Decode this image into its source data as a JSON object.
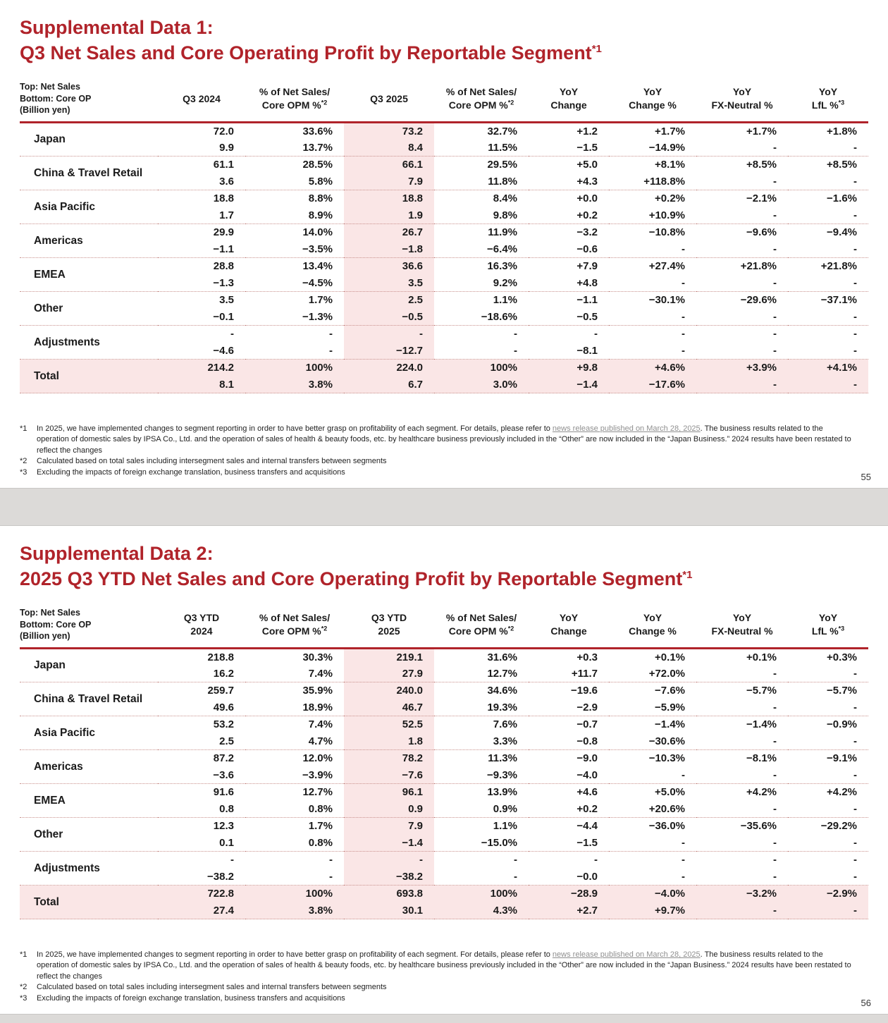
{
  "colors": {
    "accent_red": "#B0232A",
    "highlight_pink": "#FAE6E6"
  },
  "header_note": {
    "l1": "Top: Net Sales",
    "l2": "Bottom: Core OP",
    "l3": "(Billion yen)"
  },
  "footnotes": {
    "fn1": {
      "marker": "*1",
      "pre": "In 2025, we have implemented changes to segment reporting in order to have better grasp on profitability of each segment. For details, please refer to ",
      "link": "news release published on March 28, 2025",
      "post": ". The business results related to the operation of domestic sales by IPSA Co., Ltd. and the operation of sales of health & beauty foods, etc. by healthcare business previously included in the “Other” are now included in the “Japan Business.” 2024 results have been restated to reflect the changes"
    },
    "fn2": {
      "marker": "*2",
      "text": "Calculated based on total sales including intersegment sales and internal transfers between segments"
    },
    "fn3": {
      "marker": "*3",
      "text": "Excluding the impacts of foreign exchange translation, business transfers and acquisitions"
    }
  },
  "slides": [
    {
      "page": "55",
      "title": {
        "line1": "Supplemental Data 1:",
        "line2": "Q3 Net Sales and Core Operating Profit by Reportable Segment",
        "sup": "*1"
      },
      "header_cols": [
        {
          "l1": "Q3 2024"
        },
        {
          "l1": "% of Net Sales/",
          "l2": "Core OPM %",
          "sup": "*2"
        },
        {
          "l1": "Q3 2025"
        },
        {
          "l1": "% of Net Sales/",
          "l2": "Core OPM %",
          "sup": "*2"
        },
        {
          "l1": "YoY",
          "l2": "Change"
        },
        {
          "l1": "YoY",
          "l2": "Change %"
        },
        {
          "l1": "YoY",
          "l2": "FX-Neutral %"
        },
        {
          "l1": "YoY",
          "l2": "LfL %",
          "sup": "*3"
        }
      ],
      "rows": [
        {
          "label": "Japan",
          "top": [
            "72.0",
            "33.6%",
            "73.2",
            "32.7%",
            "+1.2",
            "+1.7%",
            "+1.7%",
            "+1.8%"
          ],
          "bottom": [
            "9.9",
            "13.7%",
            "8.4",
            "11.5%",
            "−1.5",
            "−14.9%",
            "-",
            "-"
          ]
        },
        {
          "label": "China & Travel Retail",
          "top": [
            "61.1",
            "28.5%",
            "66.1",
            "29.5%",
            "+5.0",
            "+8.1%",
            "+8.5%",
            "+8.5%"
          ],
          "bottom": [
            "3.6",
            "5.8%",
            "7.9",
            "11.8%",
            "+4.3",
            "+118.8%",
            "-",
            "-"
          ]
        },
        {
          "label": "Asia Pacific",
          "top": [
            "18.8",
            "8.8%",
            "18.8",
            "8.4%",
            "+0.0",
            "+0.2%",
            "−2.1%",
            "−1.6%"
          ],
          "bottom": [
            "1.7",
            "8.9%",
            "1.9",
            "9.8%",
            "+0.2",
            "+10.9%",
            "-",
            "-"
          ]
        },
        {
          "label": "Americas",
          "top": [
            "29.9",
            "14.0%",
            "26.7",
            "11.9%",
            "−3.2",
            "−10.8%",
            "−9.6%",
            "−9.4%"
          ],
          "bottom": [
            "−1.1",
            "−3.5%",
            "−1.8",
            "−6.4%",
            "−0.6",
            "-",
            "-",
            "-"
          ]
        },
        {
          "label": "EMEA",
          "top": [
            "28.8",
            "13.4%",
            "36.6",
            "16.3%",
            "+7.9",
            "+27.4%",
            "+21.8%",
            "+21.8%"
          ],
          "bottom": [
            "−1.3",
            "−4.5%",
            "3.5",
            "9.2%",
            "+4.8",
            "-",
            "-",
            "-"
          ]
        },
        {
          "label": "Other",
          "top": [
            "3.5",
            "1.7%",
            "2.5",
            "1.1%",
            "−1.1",
            "−30.1%",
            "−29.6%",
            "−37.1%"
          ],
          "bottom": [
            "−0.1",
            "−1.3%",
            "−0.5",
            "−18.6%",
            "−0.5",
            "-",
            "-",
            "-"
          ]
        },
        {
          "label": "Adjustments",
          "top": [
            "-",
            "-",
            "-",
            "-",
            "-",
            "-",
            "-",
            "-"
          ],
          "bottom": [
            "−4.6",
            "-",
            "−12.7",
            "-",
            "−8.1",
            "-",
            "-",
            "-"
          ]
        },
        {
          "label": "Total",
          "is_total": true,
          "top": [
            "214.2",
            "100%",
            "224.0",
            "100%",
            "+9.8",
            "+4.6%",
            "+3.9%",
            "+4.1%"
          ],
          "bottom": [
            "8.1",
            "3.8%",
            "6.7",
            "3.0%",
            "−1.4",
            "−17.6%",
            "-",
            "-"
          ]
        }
      ]
    },
    {
      "page": "56",
      "title": {
        "line1": "Supplemental Data 2:",
        "line2": "2025 Q3 YTD Net Sales and Core Operating Profit by Reportable Segment",
        "sup": "*1"
      },
      "header_cols": [
        {
          "l1": "Q3 YTD",
          "l2": "2024"
        },
        {
          "l1": "% of Net Sales/",
          "l2": "Core OPM %",
          "sup": "*2"
        },
        {
          "l1": "Q3 YTD",
          "l2": "2025"
        },
        {
          "l1": "% of Net Sales/",
          "l2": "Core OPM %",
          "sup": "*2"
        },
        {
          "l1": "YoY",
          "l2": "Change"
        },
        {
          "l1": "YoY",
          "l2": "Change %"
        },
        {
          "l1": "YoY",
          "l2": "FX-Neutral %"
        },
        {
          "l1": "YoY",
          "l2": "LfL %",
          "sup": "*3"
        }
      ],
      "rows": [
        {
          "label": "Japan",
          "top": [
            "218.8",
            "30.3%",
            "219.1",
            "31.6%",
            "+0.3",
            "+0.1%",
            "+0.1%",
            "+0.3%"
          ],
          "bottom": [
            "16.2",
            "7.4%",
            "27.9",
            "12.7%",
            "+11.7",
            "+72.0%",
            "-",
            "-"
          ]
        },
        {
          "label": "China & Travel Retail",
          "top": [
            "259.7",
            "35.9%",
            "240.0",
            "34.6%",
            "−19.6",
            "−7.6%",
            "−5.7%",
            "−5.7%"
          ],
          "bottom": [
            "49.6",
            "18.9%",
            "46.7",
            "19.3%",
            "−2.9",
            "−5.9%",
            "-",
            "-"
          ]
        },
        {
          "label": "Asia Pacific",
          "top": [
            "53.2",
            "7.4%",
            "52.5",
            "7.6%",
            "−0.7",
            "−1.4%",
            "−1.4%",
            "−0.9%"
          ],
          "bottom": [
            "2.5",
            "4.7%",
            "1.8",
            "3.3%",
            "−0.8",
            "−30.6%",
            "-",
            "-"
          ]
        },
        {
          "label": "Americas",
          "top": [
            "87.2",
            "12.0%",
            "78.2",
            "11.3%",
            "−9.0",
            "−10.3%",
            "−8.1%",
            "−9.1%"
          ],
          "bottom": [
            "−3.6",
            "−3.9%",
            "−7.6",
            "−9.3%",
            "−4.0",
            "-",
            "-",
            "-"
          ]
        },
        {
          "label": "EMEA",
          "top": [
            "91.6",
            "12.7%",
            "96.1",
            "13.9%",
            "+4.6",
            "+5.0%",
            "+4.2%",
            "+4.2%"
          ],
          "bottom": [
            "0.8",
            "0.8%",
            "0.9",
            "0.9%",
            "+0.2",
            "+20.6%",
            "-",
            "-"
          ]
        },
        {
          "label": "Other",
          "top": [
            "12.3",
            "1.7%",
            "7.9",
            "1.1%",
            "−4.4",
            "−36.0%",
            "−35.6%",
            "−29.2%"
          ],
          "bottom": [
            "0.1",
            "0.8%",
            "−1.4",
            "−15.0%",
            "−1.5",
            "-",
            "-",
            "-"
          ]
        },
        {
          "label": "Adjustments",
          "top": [
            "-",
            "-",
            "-",
            "-",
            "-",
            "-",
            "-",
            "-"
          ],
          "bottom": [
            "−38.2",
            "-",
            "−38.2",
            "-",
            "−0.0",
            "-",
            "-",
            "-"
          ]
        },
        {
          "label": "Total",
          "is_total": true,
          "top": [
            "722.8",
            "100%",
            "693.8",
            "100%",
            "−28.9",
            "−4.0%",
            "−3.2%",
            "−2.9%"
          ],
          "bottom": [
            "27.4",
            "3.8%",
            "30.1",
            "4.3%",
            "+2.7",
            "+9.7%",
            "-",
            "-"
          ]
        }
      ]
    }
  ]
}
